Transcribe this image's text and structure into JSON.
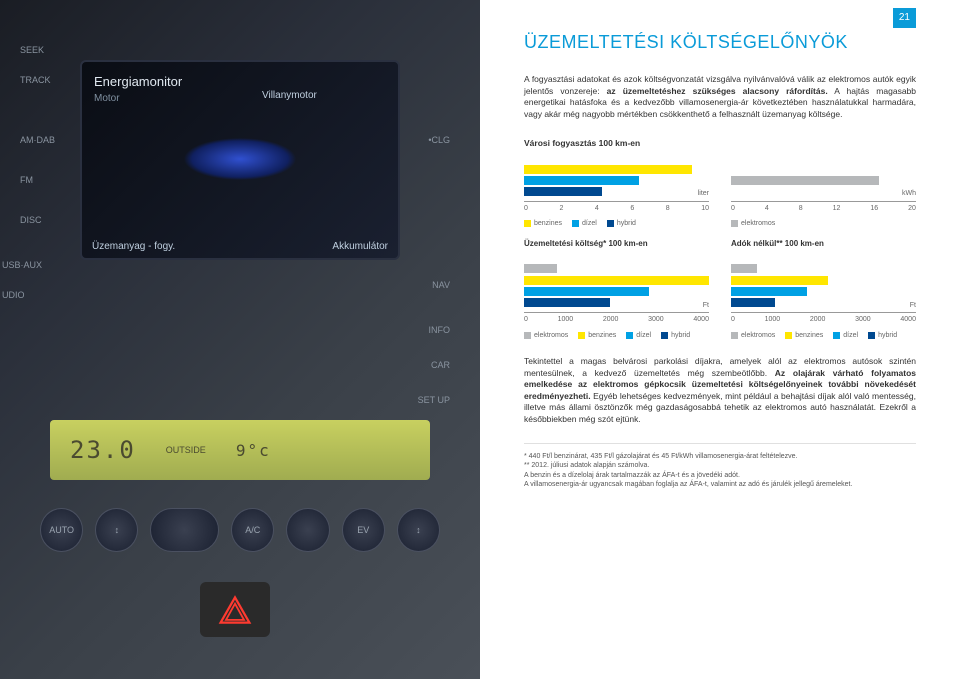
{
  "page_number": "21",
  "left_dashboard": {
    "screen_title": "Energiamonitor",
    "screen_sub": "Motor",
    "label_engine": "Villanymotor",
    "label_fuel": "Üzemanyag - fogy.",
    "label_battery": "Akkumulátor",
    "side_buttons": {
      "seek": "SEEK",
      "track": "TRACK",
      "amdb": "AM·DAB",
      "fm": "FM",
      "disc": "DISC",
      "usb": "USB·AUX",
      "udio": "UDIO",
      "clg": "•CLG",
      "nav": "NAV",
      "info": "INFO",
      "car": "CAR",
      "setup": "SET UP"
    },
    "climate": {
      "temp_left": "23.0",
      "outside_label": "OUTSIDE",
      "outside_temp": "9°c",
      "buttons": [
        "AUTO",
        "↕",
        "",
        "A/C",
        "",
        "",
        "EV",
        "↕",
        ""
      ]
    },
    "hazard_color": "#ff3a30"
  },
  "right_page": {
    "title": "ÜZEMELTETÉSI KÖLTSÉGELŐNYÖK",
    "para1_plain": "A fogyasztási adatokat és azok költségvonzatát vizsgálva nyilvánvalóvá válik az elektromos autók egyik jelentős vonzereje: ",
    "para1_bold": "az üzemeltetéshez szükséges alacsony ráfordítás.",
    "para1_plain2": " A hajtás magasabb energetikai hatásfoka és a kedvezőbb villamosenergia-ár következtében használatukkal harmadára, vagy akár még nagyobb mértékben csökkenthető a felhasznált üzemanyag költsége.",
    "charts_top": {
      "title": "Városi fogyasztás 100 km-en",
      "left": {
        "type": "bar-horizontal",
        "unit": "liter",
        "xmax": 10,
        "ticks": [
          0,
          2,
          4,
          6,
          8,
          10
        ],
        "bars": [
          {
            "name": "benzines",
            "value": 9.1,
            "color": "#ffe600"
          },
          {
            "name": "dízel",
            "value": 6.2,
            "color": "#00a1e4"
          },
          {
            "name": "hybrid",
            "value": 4.2,
            "color": "#004990"
          }
        ]
      },
      "right": {
        "type": "bar-horizontal",
        "unit": "kWh",
        "xmax": 20,
        "ticks": [
          0,
          4,
          8,
          12,
          16,
          20
        ],
        "bars": [
          {
            "name": "elektromos",
            "value": 16,
            "color": "#b6b8ba"
          }
        ]
      },
      "legend_left": [
        {
          "label": "benzines",
          "color": "#ffe600"
        },
        {
          "label": "dízel",
          "color": "#00a1e4"
        },
        {
          "label": "hybrid",
          "color": "#004990"
        }
      ],
      "legend_right": [
        {
          "label": "elektromos",
          "color": "#b6b8ba"
        }
      ]
    },
    "charts_bottom": {
      "left_title": "Üzemeltetési költség* 100 km-en",
      "right_title": "Adók nélkül** 100 km-en",
      "left": {
        "type": "bar-horizontal",
        "unit": "Ft",
        "xmax": 4000,
        "ticks": [
          0,
          1000,
          2000,
          3000,
          4000
        ],
        "bars": [
          {
            "name": "elektromos",
            "value": 720,
            "color": "#b6b8ba"
          },
          {
            "name": "benzines",
            "value": 4000,
            "color": "#ffe600"
          },
          {
            "name": "dízel",
            "value": 2700,
            "color": "#00a1e4"
          },
          {
            "name": "hybrid",
            "value": 1850,
            "color": "#004990"
          }
        ]
      },
      "right": {
        "type": "bar-horizontal",
        "unit": "Ft",
        "xmax": 4000,
        "ticks": [
          0,
          1000,
          2000,
          3000,
          4000
        ],
        "bars": [
          {
            "name": "elektromos",
            "value": 560,
            "color": "#b6b8ba"
          },
          {
            "name": "benzines",
            "value": 2100,
            "color": "#ffe600"
          },
          {
            "name": "dízel",
            "value": 1650,
            "color": "#00a1e4"
          },
          {
            "name": "hybrid",
            "value": 950,
            "color": "#004990"
          }
        ]
      },
      "legend": [
        {
          "label": "elektromos",
          "color": "#b6b8ba"
        },
        {
          "label": "benzines",
          "color": "#ffe600"
        },
        {
          "label": "dízel",
          "color": "#00a1e4"
        },
        {
          "label": "hybrid",
          "color": "#004990"
        }
      ]
    },
    "para2_plain1": "Tekintettel a magas belvárosi parkolási díjakra, amelyek alól az elektromos autósok szintén mentesülnek, a kedvező üzemeltetés még szembeötlőbb. ",
    "para2_bold": "Az olajárak várható folyamatos emelkedése az elektromos gépkocsik üzemeltetési költségelőnyeinek további növekedését eredményezheti.",
    "para2_plain2": " Egyéb lehetséges kedvezmények, mint például a behajtási díjak alól való mentesség, illetve más állami ösztönzők még gazdaságosabbá tehetik az elektromos autó használatát. Ezekről a későbbiekben még szót ejtünk.",
    "footnotes": [
      "* 440 Ft/l benzinárat, 435 Ft/l gázolajárat és 45 Ft/kWh villamosenergia-árat feltételezve.",
      "** 2012. júliusi adatok alapján számolva.",
      "A benzin és a dízelolaj árak tartalmazzák az ÁFA-t és a jövedéki adót.",
      "A villamosenergia-ár ugyancsak magában foglalja az ÁFA-t, valamint az adó és járulék jellegű áremeleket."
    ],
    "colors": {
      "accent": "#0a9bd8",
      "text": "#333333"
    }
  }
}
